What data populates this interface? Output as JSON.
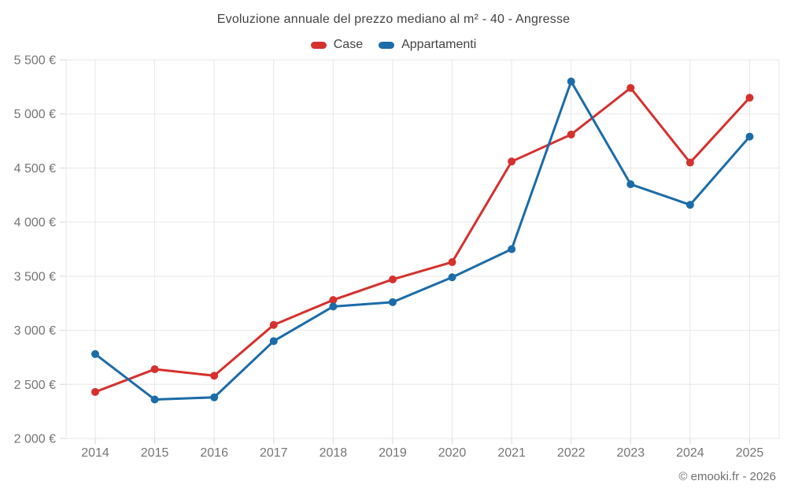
{
  "title": "Evoluzione annuale del prezzo mediano al m² - 40 - Angresse",
  "legend": {
    "items": [
      {
        "label": "Case",
        "color": "#d5312d"
      },
      {
        "label": "Appartamenti",
        "color": "#1b6ca8"
      }
    ]
  },
  "watermark": "© emooki.fr - 2026",
  "colors": {
    "case_red": "#d5312d",
    "appartamenti_blue": "#1b6ca8",
    "grid": "#e7e7e7",
    "axis_text": "#757575",
    "title_text": "#424242"
  },
  "chart_data": {
    "type": "line",
    "title": "Evoluzione annuale del prezzo mediano al m² - 40 - Angresse",
    "categories": [
      "2014",
      "2015",
      "2016",
      "2017",
      "2018",
      "2019",
      "2020",
      "2021",
      "2022",
      "2023",
      "2024",
      "2025"
    ],
    "series": [
      {
        "name": "Case",
        "color": "#d5312d",
        "values": [
          2430,
          2640,
          2580,
          3050,
          3280,
          3470,
          3630,
          4560,
          4810,
          5240,
          4550,
          5150
        ]
      },
      {
        "name": "Appartamenti",
        "color": "#1b6ca8",
        "values": [
          2780,
          2360,
          2380,
          2900,
          3220,
          3260,
          3490,
          3750,
          5300,
          4350,
          4160,
          4790
        ]
      }
    ],
    "xlabel": "",
    "ylabel": "",
    "ylim": [
      2000,
      5500
    ],
    "y_ticks": [
      2000,
      2500,
      3000,
      3500,
      4000,
      4500,
      5000,
      5500
    ],
    "y_tick_labels": [
      "2 000 €",
      "2 500 €",
      "3 000 €",
      "3 500 €",
      "4 000 €",
      "4 500 €",
      "5 000 €",
      "5 500 €"
    ],
    "grid": true,
    "legend_position": "top",
    "point_radius": 5,
    "line_width": 3
  }
}
